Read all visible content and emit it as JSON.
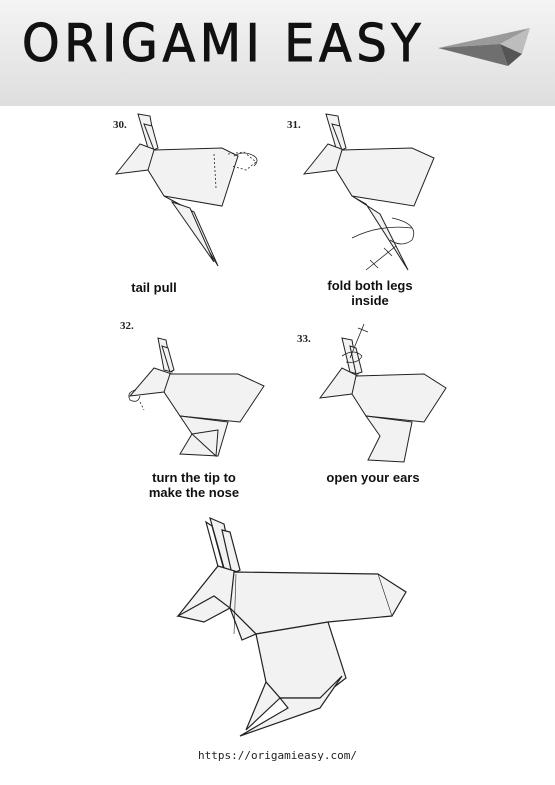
{
  "header": {
    "title": "ORIGAMI EASY"
  },
  "steps": [
    {
      "number": "30.",
      "caption_line1": "tail pull",
      "caption_line2": ""
    },
    {
      "number": "31.",
      "caption_line1": "fold both legs",
      "caption_line2": "inside"
    },
    {
      "number": "32.",
      "caption_line1": "turn the tip to",
      "caption_line2": "make the nose"
    },
    {
      "number": "33.",
      "caption_line1": "open your ears",
      "caption_line2": ""
    }
  ],
  "footer": {
    "url": "https://origamieasy.com/"
  }
}
